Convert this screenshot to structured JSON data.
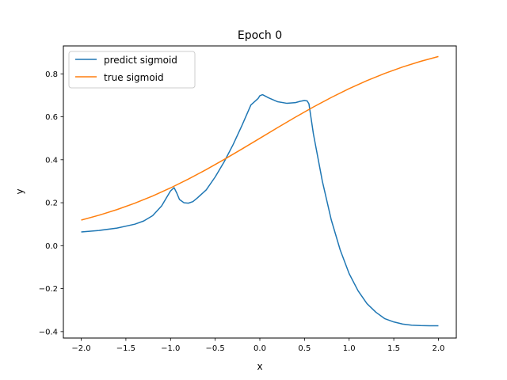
{
  "chart_data": {
    "type": "line",
    "title": "Epoch 0",
    "xlabel": "x",
    "ylabel": "y",
    "xlim": [
      -2.2,
      2.2
    ],
    "ylim": [
      -0.43,
      0.93
    ],
    "xticks": [
      -2.0,
      -1.5,
      -1.0,
      -0.5,
      0.0,
      0.5,
      1.0,
      1.5,
      2.0
    ],
    "xtick_labels": [
      "−2.0",
      "−1.5",
      "−1.0",
      "−0.5",
      "0.0",
      "0.5",
      "1.0",
      "1.5",
      "2.0"
    ],
    "yticks": [
      -0.4,
      -0.2,
      0.0,
      0.2,
      0.4,
      0.6,
      0.8
    ],
    "ytick_labels": [
      "−0.4",
      "−0.2",
      "0.0",
      "0.2",
      "0.4",
      "0.6",
      "0.8"
    ],
    "grid": false,
    "legend_position": "top-left",
    "series": [
      {
        "name": "predict sigmoid",
        "color": "#1f77b4",
        "x": [
          -2.0,
          -1.8,
          -1.6,
          -1.4,
          -1.3,
          -1.2,
          -1.1,
          -1.0,
          -0.96,
          -0.93,
          -0.9,
          -0.85,
          -0.8,
          -0.75,
          -0.7,
          -0.6,
          -0.5,
          -0.4,
          -0.3,
          -0.2,
          -0.1,
          -0.02,
          0.0,
          0.03,
          0.1,
          0.2,
          0.3,
          0.4,
          0.45,
          0.5,
          0.53,
          0.55,
          0.6,
          0.7,
          0.8,
          0.9,
          1.0,
          1.1,
          1.2,
          1.3,
          1.4,
          1.5,
          1.6,
          1.7,
          1.8,
          1.9,
          2.0
        ],
        "y": [
          0.064,
          0.071,
          0.082,
          0.1,
          0.115,
          0.14,
          0.185,
          0.255,
          0.27,
          0.245,
          0.215,
          0.2,
          0.198,
          0.205,
          0.222,
          0.26,
          0.32,
          0.39,
          0.47,
          0.56,
          0.655,
          0.685,
          0.698,
          0.703,
          0.688,
          0.67,
          0.663,
          0.666,
          0.672,
          0.676,
          0.674,
          0.66,
          0.52,
          0.3,
          0.12,
          -0.02,
          -0.13,
          -0.21,
          -0.27,
          -0.31,
          -0.34,
          -0.355,
          -0.365,
          -0.37,
          -0.372,
          -0.373,
          -0.373
        ]
      },
      {
        "name": "true sigmoid",
        "color": "#ff7f0e",
        "function": "1/(1+exp(-x))",
        "x": [
          -2.0,
          -1.8,
          -1.6,
          -1.4,
          -1.2,
          -1.0,
          -0.8,
          -0.6,
          -0.4,
          -0.2,
          0.0,
          0.2,
          0.4,
          0.6,
          0.8,
          1.0,
          1.2,
          1.4,
          1.6,
          1.8,
          2.0
        ],
        "y": [
          0.1192,
          0.1419,
          0.168,
          0.1978,
          0.2315,
          0.2689,
          0.31,
          0.3543,
          0.4013,
          0.4502,
          0.5,
          0.5498,
          0.5987,
          0.6457,
          0.69,
          0.7311,
          0.7685,
          0.8022,
          0.832,
          0.8581,
          0.8808
        ]
      }
    ]
  }
}
